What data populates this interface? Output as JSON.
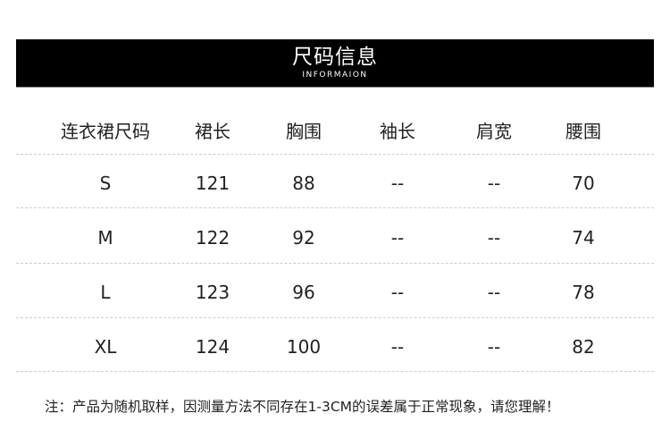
{
  "banner": {
    "title": "尺码信息",
    "subtitle": "INFORMAION"
  },
  "table": {
    "headers": [
      "连衣裙尺码",
      "裙长",
      "胸围",
      "袖长",
      "肩宽",
      "腰围"
    ],
    "rows": [
      [
        "S",
        "121",
        "88",
        "--",
        "--",
        "70"
      ],
      [
        "M",
        "122",
        "92",
        "--",
        "--",
        "74"
      ],
      [
        "L",
        "123",
        "96",
        "--",
        "--",
        "78"
      ],
      [
        "XL",
        "124",
        "100",
        "--",
        "--",
        "82"
      ]
    ]
  },
  "note": "注：产品为随机取样，因测量方法不同存在1-3CM的误差属于正常现象，请您理解！"
}
